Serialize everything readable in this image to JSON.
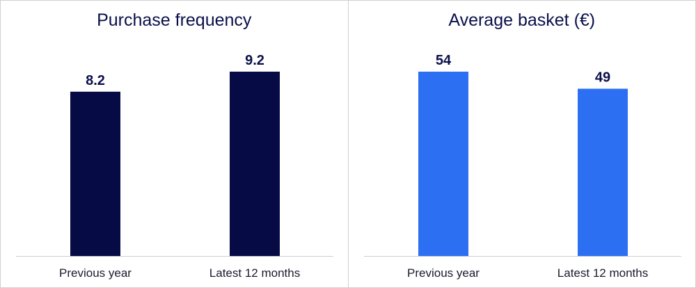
{
  "chart_data": [
    {
      "type": "bar",
      "title": "Purchase frequency",
      "categories": [
        "Previous year",
        "Latest 12 months"
      ],
      "values": [
        8.2,
        9.2
      ],
      "value_labels": [
        "8.2",
        "9.2"
      ],
      "ylim": [
        0,
        9.2
      ],
      "color": "#060b45",
      "grid": false,
      "xlabel": "",
      "ylabel": ""
    },
    {
      "type": "bar",
      "title": "Average basket (€)",
      "categories": [
        "Previous year",
        "Latest 12 months"
      ],
      "values": [
        54,
        49
      ],
      "value_labels": [
        "54",
        "49"
      ],
      "ylim": [
        0,
        54
      ],
      "color": "#2d6ff2",
      "grid": false,
      "xlabel": "",
      "ylabel": ""
    }
  ]
}
